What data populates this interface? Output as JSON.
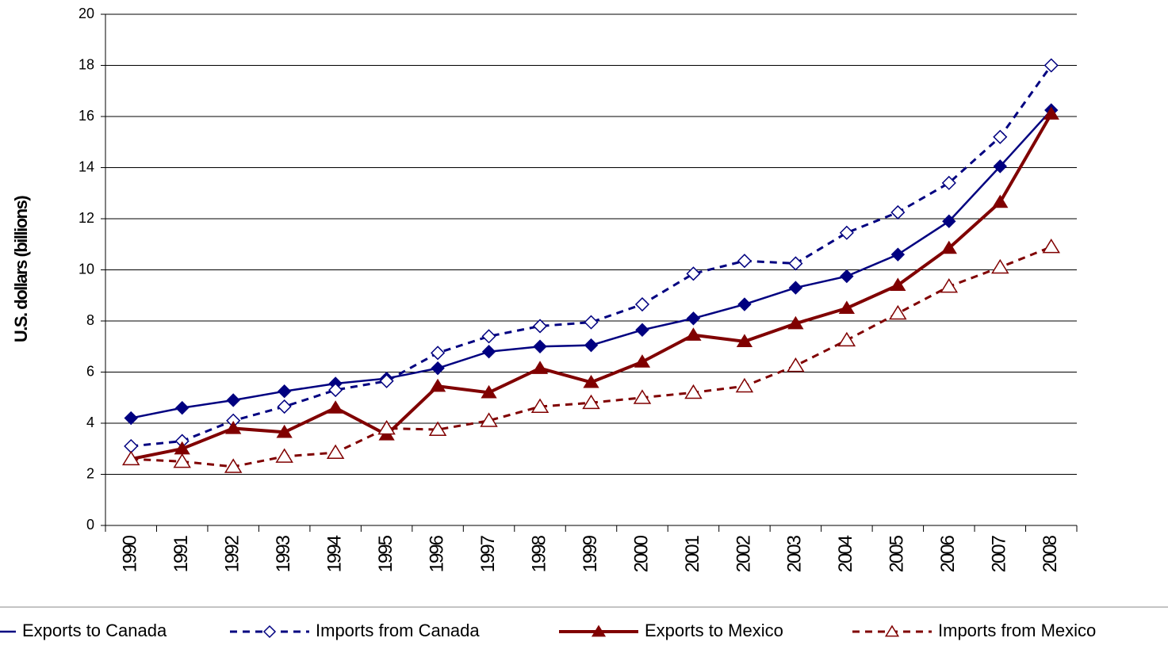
{
  "chart_data": {
    "type": "line",
    "y_label": "U.S. dollars (billions)",
    "categories": [
      "1990",
      "1991",
      "1992",
      "1993",
      "1994",
      "1995",
      "1996",
      "1997",
      "1998",
      "1999",
      "2000",
      "2001",
      "2002",
      "2003",
      "2004",
      "2005",
      "2006",
      "2007",
      "2008"
    ],
    "series": [
      {
        "name": "Exports to Canada",
        "color": "#000080",
        "dashed": false,
        "marker": "diamond",
        "filled": true,
        "values": [
          4.2,
          4.6,
          4.9,
          5.25,
          5.55,
          5.75,
          6.15,
          6.8,
          7.0,
          7.05,
          7.65,
          8.1,
          8.65,
          9.3,
          9.75,
          10.6,
          11.9,
          14.05,
          16.25
        ]
      },
      {
        "name": "Imports from Canada",
        "color": "#000080",
        "dashed": true,
        "marker": "diamond",
        "filled": false,
        "values": [
          3.1,
          3.3,
          4.1,
          4.65,
          5.3,
          5.65,
          6.75,
          7.4,
          7.8,
          7.95,
          8.65,
          9.85,
          10.35,
          10.25,
          11.45,
          12.25,
          13.4,
          15.2,
          18.0
        ]
      },
      {
        "name": "Exports to Mexico",
        "color": "#800000",
        "dashed": false,
        "marker": "triangle",
        "filled": true,
        "values": [
          2.6,
          3.0,
          3.8,
          3.65,
          4.6,
          3.55,
          5.45,
          5.2,
          6.15,
          5.6,
          6.4,
          7.45,
          7.2,
          7.9,
          8.5,
          9.4,
          10.85,
          12.65,
          16.1
        ]
      },
      {
        "name": "Imports from Mexico",
        "color": "#800000",
        "dashed": true,
        "marker": "triangle",
        "filled": false,
        "values": [
          2.6,
          2.5,
          2.3,
          2.7,
          2.85,
          3.8,
          3.75,
          4.1,
          4.65,
          4.8,
          5.0,
          5.2,
          5.45,
          6.25,
          7.25,
          8.3,
          9.35,
          10.1,
          10.9
        ]
      }
    ],
    "ylim": [
      0,
      20
    ],
    "yticks": [
      0,
      2,
      4,
      6,
      8,
      10,
      12,
      14,
      16,
      18,
      20
    ],
    "grid": true,
    "legend": "bottom"
  }
}
